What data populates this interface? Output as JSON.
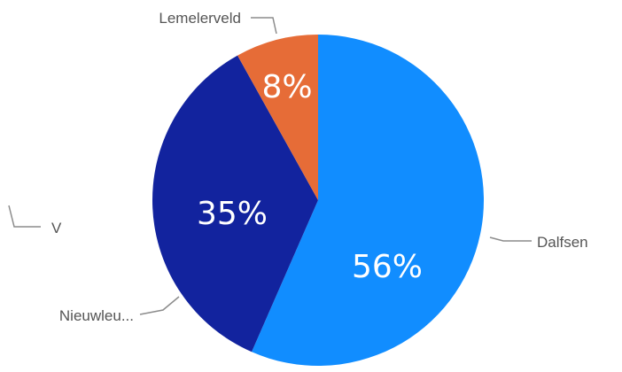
{
  "chart_data": {
    "type": "pie",
    "title": "",
    "slices": [
      {
        "label": "Dalfsen",
        "value": 56,
        "value_label": "56%",
        "color": "#118DFF"
      },
      {
        "label": "Nieuwleu...",
        "value": 35,
        "value_label": "35%",
        "color": "#12239E"
      },
      {
        "label": "Lemelerveld",
        "value": 8,
        "value_label": "8%",
        "color": "#E66C37"
      }
    ],
    "partial_labels": [
      {
        "label": "V"
      }
    ],
    "legend": "none"
  }
}
